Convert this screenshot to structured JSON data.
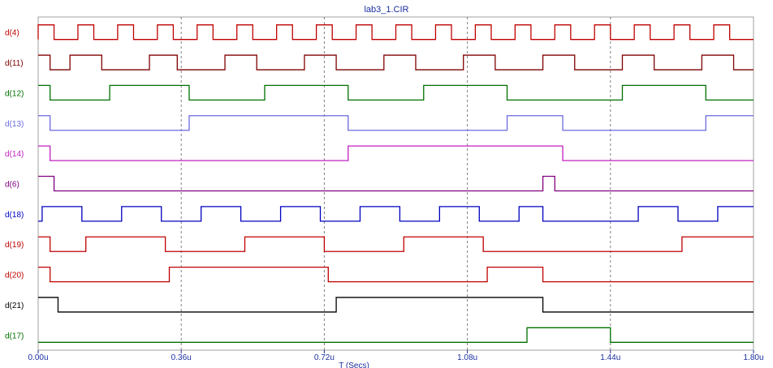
{
  "chart_data": {
    "type": "line",
    "title": "lab3_1.CIR",
    "xlabel": "T (Secs)",
    "xlim": [
      0,
      1.8
    ],
    "x_unit": "u",
    "xticks": [
      0.0,
      0.36,
      0.72,
      1.08,
      1.44,
      1.8
    ],
    "xtick_labels": [
      "0.00u",
      "0.36u",
      "0.72u",
      "1.08u",
      "1.44u",
      "1.80u"
    ],
    "grid": "vertical dashed",
    "series": [
      {
        "name": "d(4)",
        "color": "#c00000",
        "initial": 0,
        "transitions": [
          0.0,
          0.04,
          0.1,
          0.14,
          0.2,
          0.24,
          0.3,
          0.34,
          0.4,
          0.44,
          0.5,
          0.54,
          0.6,
          0.64,
          0.7,
          0.74,
          0.8,
          0.84,
          0.9,
          0.94,
          1.0,
          1.04,
          1.1,
          1.14,
          1.2,
          1.24,
          1.3,
          1.34,
          1.4,
          1.44,
          1.5,
          1.54,
          1.6,
          1.64,
          1.7,
          1.74
        ]
      },
      {
        "name": "d(11)",
        "color": "#800000",
        "initial": 1,
        "transitions": [
          0.03,
          0.08,
          0.16,
          0.28,
          0.35,
          0.47,
          0.55,
          0.67,
          0.75,
          0.87,
          0.95,
          1.07,
          1.15,
          1.27,
          1.35,
          1.47,
          1.55,
          1.67,
          1.75
        ]
      },
      {
        "name": "d(12)",
        "color": "#007000",
        "initial": 1,
        "transitions": [
          0.03,
          0.18,
          0.38,
          0.57,
          0.78,
          0.97,
          1.18,
          1.47,
          1.68
        ]
      },
      {
        "name": "d(13)",
        "color": "#6a6ae0",
        "initial": 1,
        "transitions": [
          0.03,
          0.38,
          0.78,
          1.18,
          1.32,
          1.68
        ]
      },
      {
        "name": "d(14)",
        "color": "#c020c0",
        "initial": 1,
        "transitions": [
          0.03,
          0.78,
          1.32
        ]
      },
      {
        "name": "d(6)",
        "color": "#800080",
        "initial": 1,
        "transitions": [
          0.04,
          1.27,
          1.3
        ]
      },
      {
        "name": "d(18)",
        "color": "#0000c0",
        "initial": 0,
        "transitions": [
          0.01,
          0.11,
          0.21,
          0.31,
          0.41,
          0.51,
          0.61,
          0.71,
          0.81,
          0.91,
          1.01,
          1.11,
          1.21,
          1.27,
          1.51,
          1.61,
          1.71
        ]
      },
      {
        "name": "d(19)",
        "color": "#c00000",
        "initial": 1,
        "transitions": [
          0.03,
          0.12,
          0.32,
          0.52,
          0.72,
          0.92,
          1.12,
          1.62
        ]
      },
      {
        "name": "d(20)",
        "color": "#c00000",
        "initial": 1,
        "transitions": [
          0.03,
          0.33,
          0.73,
          1.13,
          1.27
        ]
      },
      {
        "name": "d(21)",
        "color": "#000000",
        "initial": 1,
        "transitions": [
          0.05,
          0.75,
          1.27
        ]
      },
      {
        "name": "d(17)",
        "color": "#007000",
        "initial": 0,
        "transitions": [
          1.23,
          1.44
        ]
      }
    ]
  }
}
